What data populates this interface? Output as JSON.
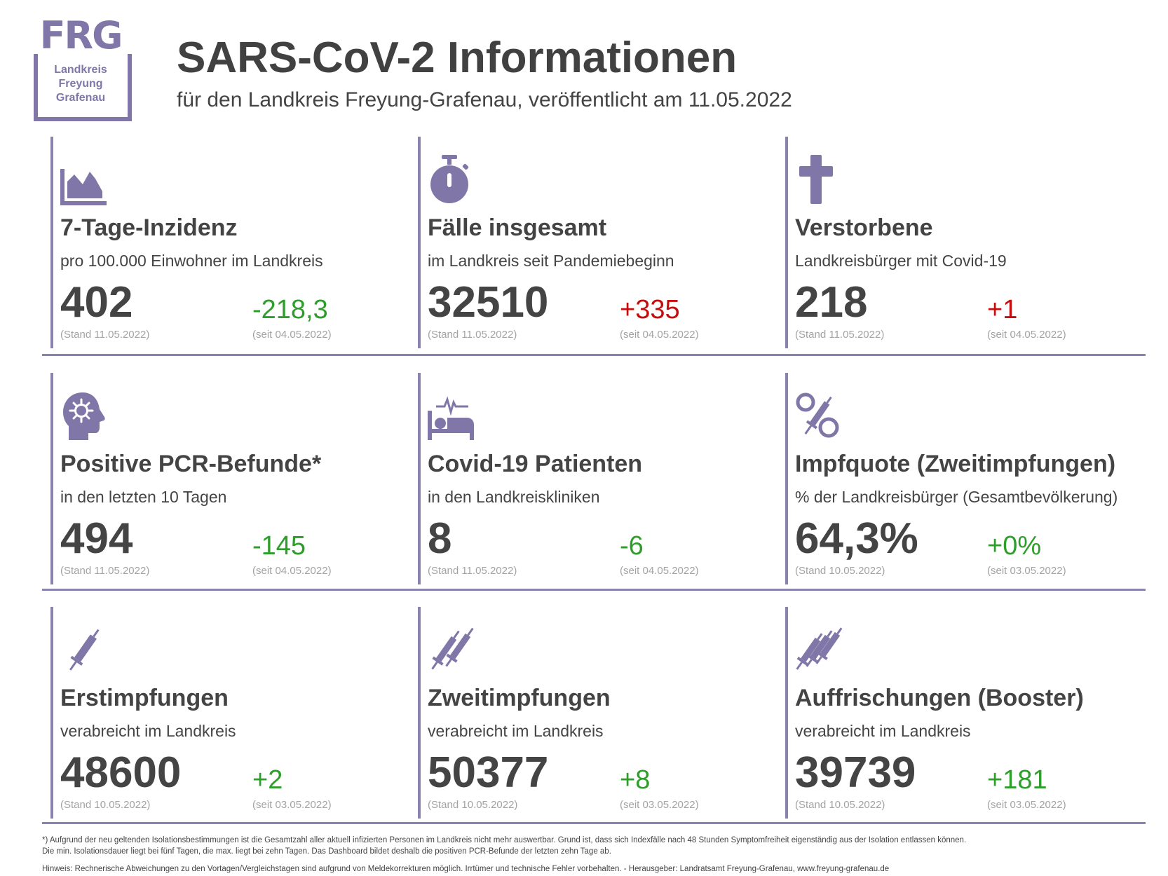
{
  "logo": {
    "abbr": "FRG",
    "line1": "Landkreis",
    "line2": "Freyung",
    "line3": "Grafenau"
  },
  "header": {
    "title": "SARS-CoV-2 Informationen",
    "subtitle": "für den Landkreis Freyung-Grafenau, veröffentlicht am 11.05.2022"
  },
  "colors": {
    "accent": "#8a83ad",
    "text": "#444444",
    "positive": "#2e9e2a",
    "negative": "#c50d0d",
    "muted": "#a3a3a3"
  },
  "tiles": [
    {
      "icon": "area-chart-icon",
      "title": "7-Tage-Inzidenz",
      "desc": "pro 100.000 Einwohner im Landkreis",
      "value": "402",
      "value_date": "(Stand 11.05.2022)",
      "delta": "-218,3",
      "delta_date": "(seit 04.05.2022)",
      "delta_color": "green"
    },
    {
      "icon": "stopwatch-icon",
      "title": "Fälle insgesamt",
      "desc": "im Landkreis seit Pandemiebeginn",
      "value": "32510",
      "value_date": "(Stand 11.05.2022)",
      "delta": "+335",
      "delta_date": "(seit 04.05.2022)",
      "delta_color": "red"
    },
    {
      "icon": "cross-icon",
      "title": "Verstorbene",
      "desc": "Landkreisbürger mit Covid-19",
      "value": "218",
      "value_date": "(Stand 11.05.2022)",
      "delta": "+1",
      "delta_date": "(seit 04.05.2022)",
      "delta_color": "red"
    },
    {
      "icon": "head-virus-icon",
      "title": "Positive PCR-Befunde*",
      "desc": "in den letzten 10 Tagen",
      "value": "494",
      "value_date": "(Stand 11.05.2022)",
      "delta": "-145",
      "delta_date": "(seit 04.05.2022)",
      "delta_color": "green"
    },
    {
      "icon": "hospital-bed-icon",
      "title": "Covid-19 Patienten",
      "desc": "in den Landkreiskliniken",
      "value": "8",
      "value_date": "(Stand 11.05.2022)",
      "delta": "-6",
      "delta_date": "(seit 04.05.2022)",
      "delta_color": "green"
    },
    {
      "icon": "percent-syringe-icon",
      "title": "Impfquote (Zweitimpfungen)",
      "desc": "% der Landkreisbürger (Gesamtbevölkerung)",
      "value": "64,3%",
      "value_date": "(Stand 10.05.2022)",
      "delta": "+0%",
      "delta_date": "(seit 03.05.2022)",
      "delta_color": "green"
    },
    {
      "icon": "syringe-icon",
      "title": "Erstimpfungen",
      "desc": "verabreicht im Landkreis",
      "value": "48600",
      "value_date": "(Stand 10.05.2022)",
      "delta": "+2",
      "delta_date": "(seit 03.05.2022)",
      "delta_color": "green"
    },
    {
      "icon": "two-syringes-icon",
      "title": "Zweitimpfungen",
      "desc": "verabreicht im Landkreis",
      "value": "50377",
      "value_date": "(Stand 10.05.2022)",
      "delta": "+8",
      "delta_date": "(seit 03.05.2022)",
      "delta_color": "green"
    },
    {
      "icon": "three-syringes-icon",
      "title": "Auffrischungen (Booster)",
      "desc": "verabreicht im Landkreis",
      "value": "39739",
      "value_date": "(Stand 10.05.2022)",
      "delta": "+181",
      "delta_date": "(seit 03.05.2022)",
      "delta_color": "green"
    }
  ],
  "footer": {
    "note1": "*) Aufgrund der neu geltenden Isolationsbestimmungen ist die Gesamtzahl aller aktuell infizierten Personen im Landkreis nicht mehr auswertbar. Grund ist, dass sich Indexfälle nach 48 Stunden Symptomfreiheit eigenständig aus der Isolation entlassen können.",
    "note2": "Die min. Isolationsdauer liegt bei fünf Tagen, die max. liegt bei zehn Tagen. Das Dashboard bildet deshalb die positiven PCR-Befunde der letzten zehn Tage ab.",
    "hint": "Hinweis: Rechnerische Abweichungen zu den Vortagen/Vergleichstagen sind aufgrund von Meldekorrekturen möglich. Irrtümer und technische Fehler vorbehalten. - Herausgeber: Landratsamt Freyung-Grafenau, www.freyung-grafenau.de"
  }
}
